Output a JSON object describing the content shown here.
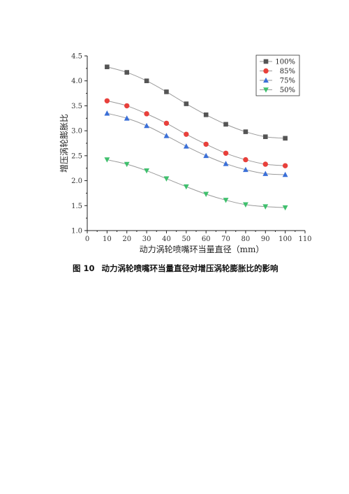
{
  "chart_data": {
    "type": "line",
    "xlabel": "动力涡轮喷嘴环当量直径（mm）",
    "ylabel": "增压涡轮膨胀比",
    "xlim": [
      0,
      110
    ],
    "ylim": [
      1.0,
      4.5
    ],
    "xticks": [
      0,
      10,
      20,
      30,
      40,
      50,
      60,
      70,
      80,
      90,
      100,
      110
    ],
    "yticks": [
      1.0,
      1.5,
      2.0,
      2.5,
      3.0,
      3.5,
      4.0,
      4.5
    ],
    "x": [
      10,
      20,
      30,
      40,
      50,
      60,
      70,
      80,
      90,
      100
    ],
    "legend_position": "top-right",
    "grid": false,
    "series": [
      {
        "name": "100%",
        "color": "#555555",
        "marker": "square",
        "values": [
          4.28,
          4.17,
          4.0,
          3.78,
          3.54,
          3.32,
          3.13,
          2.98,
          2.88,
          2.85
        ]
      },
      {
        "name": "85%",
        "color": "#e8403b",
        "marker": "circle",
        "values": [
          3.6,
          3.5,
          3.34,
          3.15,
          2.93,
          2.73,
          2.55,
          2.42,
          2.33,
          2.3
        ]
      },
      {
        "name": "75%",
        "color": "#3a6fd8",
        "marker": "triangle-up",
        "values": [
          3.35,
          3.25,
          3.1,
          2.9,
          2.69,
          2.5,
          2.34,
          2.22,
          2.14,
          2.12
        ]
      },
      {
        "name": "50%",
        "color": "#3fc06d",
        "marker": "triangle-down",
        "values": [
          2.42,
          2.33,
          2.2,
          2.04,
          1.88,
          1.73,
          1.61,
          1.52,
          1.48,
          1.46
        ]
      }
    ]
  },
  "caption": {
    "figure_number": "图 10",
    "text": "动力涡轮喷嘴环当量直径对增压涡轮膨胀比的影响"
  }
}
